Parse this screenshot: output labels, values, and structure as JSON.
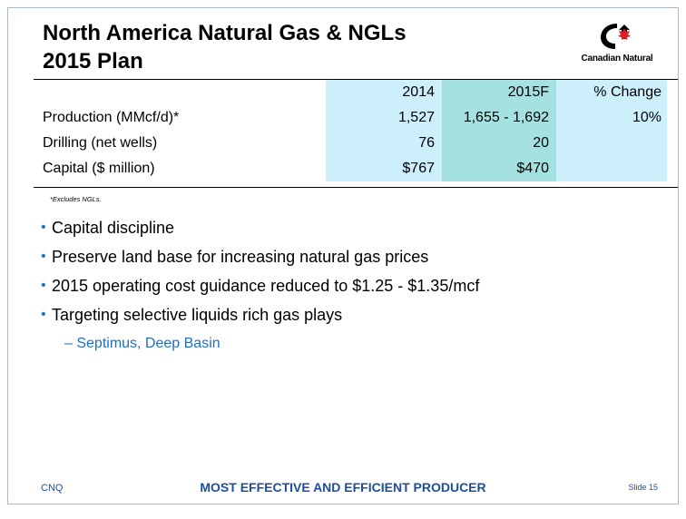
{
  "slide": {
    "title_line1": "North America Natural Gas & NGLs",
    "title_line2": "2015 Plan",
    "logo_text": "Canadian Natural",
    "logo_icon": "cnq-logo-icon",
    "colors": {
      "col_2014": "#cdeefb",
      "col_2015": "#a6e1e1",
      "accent": "#1f6fbf",
      "footer_text": "#1f4e9a"
    }
  },
  "table": {
    "headers": [
      "",
      "2014",
      "2015F",
      "% Change"
    ],
    "rows": [
      [
        "Production (MMcf/d)*",
        "1,527",
        "1,655 - 1,692",
        "10%"
      ],
      [
        "Drilling (net wells)",
        "76",
        "20",
        ""
      ],
      [
        "Capital ($ million)",
        "$767",
        "$470",
        ""
      ]
    ],
    "footnote": "*Excludes NGLs."
  },
  "bullets": [
    "Capital discipline",
    "Preserve land base for increasing natural gas prices",
    "2015 operating cost guidance reduced to $1.25 - $1.35/mcf",
    "Targeting selective liquids rich gas plays"
  ],
  "sub_bullet": "– Septimus, Deep Basin",
  "footer": {
    "left": "CNQ",
    "center": "MOST EFFECTIVE AND EFFICIENT PRODUCER",
    "right": "Slide 15"
  }
}
